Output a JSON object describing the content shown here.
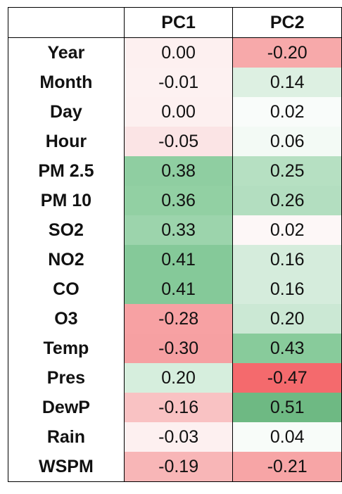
{
  "chart_data": {
    "type": "heatmap",
    "columns": [
      "PC1",
      "PC2"
    ],
    "rows": [
      "Year",
      "Month",
      "Day",
      "Hour",
      "PM 2.5",
      "PM 10",
      "SO2",
      "NO2",
      "CO",
      "O3",
      "Temp",
      "Pres",
      "DewP",
      "Rain",
      "WSPM"
    ],
    "values": [
      [
        "0.00",
        "-0.20"
      ],
      [
        "-0.01",
        "0.14"
      ],
      [
        "0.00",
        "0.02"
      ],
      [
        "-0.05",
        "0.06"
      ],
      [
        "0.38",
        "0.25"
      ],
      [
        "0.36",
        "0.26"
      ],
      [
        "0.33",
        "0.02"
      ],
      [
        "0.41",
        "0.16"
      ],
      [
        "0.41",
        "0.16"
      ],
      [
        "-0.28",
        "0.20"
      ],
      [
        "-0.30",
        "0.43"
      ],
      [
        "0.20",
        "-0.47"
      ],
      [
        "-0.16",
        "0.51"
      ],
      [
        "-0.03",
        "0.04"
      ],
      [
        "-0.19",
        "-0.21"
      ]
    ],
    "cell_colors": [
      [
        "#fdf0f0",
        "#f7a9aa"
      ],
      [
        "#fdf1f1",
        "#ddf0e2"
      ],
      [
        "#fdf0f0",
        "#f9fcfa"
      ],
      [
        "#fbe4e5",
        "#f3faf5"
      ],
      [
        "#8fcea1",
        "#b6e0c2"
      ],
      [
        "#92d0a3",
        "#b3dec0"
      ],
      [
        "#9cd4ac",
        "#fdf7f7"
      ],
      [
        "#85c999",
        "#d5ecdc"
      ],
      [
        "#85c999",
        "#d5ecdc"
      ],
      [
        "#f7a1a3",
        "#cbe8d4"
      ],
      [
        "#f6a0a2",
        "#88cb9b"
      ],
      [
        "#d6eedd",
        "#f46a6d"
      ],
      [
        "#f9c2c3",
        "#6eb983"
      ],
      [
        "#fdf0f0",
        "#f8fcf9"
      ],
      [
        "#f8b6b7",
        "#f7a5a6"
      ]
    ]
  }
}
